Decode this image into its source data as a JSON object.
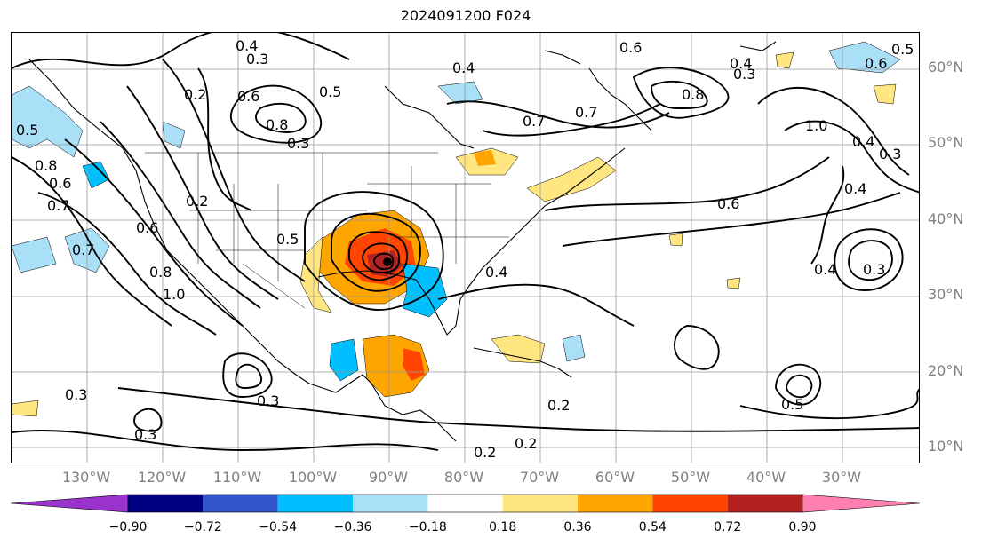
{
  "title": "2024091200 F024",
  "lat_labels": [
    "60°N",
    "50°N",
    "40°N",
    "30°N",
    "20°N",
    "10°N"
  ],
  "lon_labels": [
    "130°W",
    "120°W",
    "110°W",
    "100°W",
    "90°W",
    "80°W",
    "70°W",
    "60°W",
    "50°W",
    "40°W",
    "30°W"
  ],
  "contour_labels": [
    "0.4",
    "0.3",
    "0.2",
    "0.6",
    "0.8",
    "0.5",
    "0.7",
    "0.6",
    "0.8",
    "0.5",
    "0.7",
    "0.6",
    "0.8",
    "1.0",
    "0.4",
    "0.6",
    "0.4",
    "0.3",
    "0.6",
    "0.5",
    "0.4",
    "0.3",
    "0.4",
    "0.3",
    "0.2",
    "0.7",
    "0.6",
    "0.7",
    "0.8",
    "1.0",
    "0.2",
    "0.3",
    "0.4",
    "0.3",
    "0.5",
    "0.2",
    "0.2",
    "0.3",
    "0.5",
    "0.3",
    "0.4"
  ],
  "colorbar": {
    "ticks": [
      "−0.90",
      "−0.72",
      "−0.54",
      "−0.36",
      "−0.18",
      "0.18",
      "0.36",
      "0.54",
      "0.72",
      "0.90"
    ],
    "colors": [
      "#9933cc",
      "#000080",
      "#3355cc",
      "#00bfff",
      "#aadff8",
      "#ffffff",
      "#ffe680",
      "#ffa500",
      "#ff4500",
      "#b22222",
      "#ff80b0"
    ],
    "extend_low_color": "#9933cc",
    "extend_high_color": "#ff80b0"
  }
}
